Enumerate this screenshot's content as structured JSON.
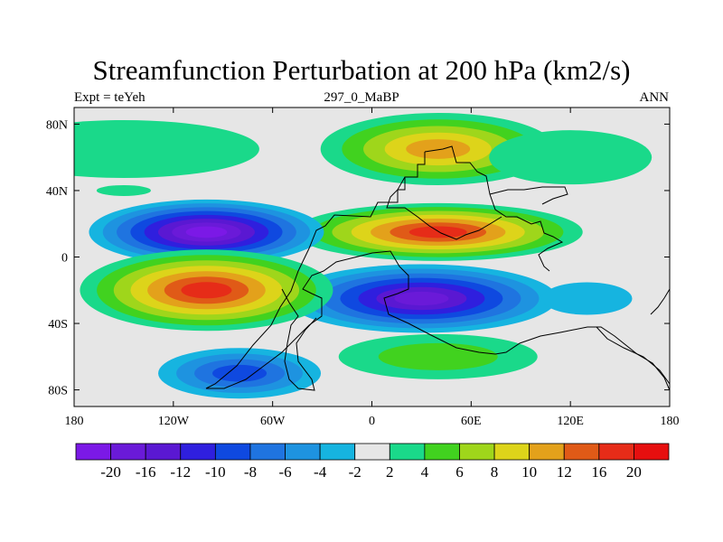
{
  "chart_data": {
    "type": "heatmap",
    "subtype": "filled-contour-map",
    "title": "Streamfunction Perturbation at 200 hPa (km2/s)",
    "subtitle_left": "Expt = teYeh",
    "subtitle_center": "297_0_MaBP",
    "subtitle_right": "ANN",
    "x_ticks": [
      "180",
      "120W",
      "60W",
      "0",
      "60E",
      "120E",
      "180"
    ],
    "x_tick_values": [
      -180,
      -120,
      -60,
      0,
      60,
      120,
      180
    ],
    "y_ticks": [
      "80N",
      "40N",
      "0",
      "40S",
      "80S"
    ],
    "y_tick_values": [
      80,
      40,
      0,
      -40,
      -80
    ],
    "xlim": [
      -180,
      180
    ],
    "ylim": [
      -90,
      90
    ],
    "colorbar_labels": [
      "-20",
      "-16",
      "-12",
      "-10",
      "-8",
      "-6",
      "-4",
      "-2",
      "2",
      "4",
      "6",
      "8",
      "10",
      "12",
      "16",
      "20"
    ],
    "colorbar_levels": [
      -20,
      -16,
      -12,
      -10,
      -8,
      -6,
      -4,
      -2,
      2,
      4,
      6,
      8,
      10,
      12,
      16,
      20
    ],
    "colorbar_colors": [
      "#7b19e6",
      "#6a1ad8",
      "#5a18d2",
      "#2f1fde",
      "#0f49e0",
      "#1f74e0",
      "#1e93e0",
      "#16b4e0",
      "#e6e6e6",
      "#1ad98a",
      "#41d21f",
      "#9fd61b",
      "#ddd41a",
      "#e3a11b",
      "#e05a17",
      "#e62c18",
      "#e60f0f"
    ],
    "blobs": [
      {
        "name": "north-pacific-positive",
        "lon": -150,
        "lat": 65,
        "value": 3.5
      },
      {
        "name": "arctic-asia-positive",
        "lon": 40,
        "lat": 65,
        "value": 11
      },
      {
        "name": "north-atlantic-positive",
        "lon": 120,
        "lat": 60,
        "value": 3
      },
      {
        "name": "tropical-asia-high",
        "lon": 40,
        "lat": 15,
        "value": 16
      },
      {
        "name": "north-america-low",
        "lon": -100,
        "lat": 15,
        "value": -20
      },
      {
        "name": "southern-africa-low",
        "lon": 30,
        "lat": -25,
        "value": -16
      },
      {
        "name": "south-pacific-high",
        "lon": -100,
        "lat": -20,
        "value": 17
      },
      {
        "name": "south-atlantic-high",
        "lon": 40,
        "lat": -60,
        "value": 5
      },
      {
        "name": "southern-ocean-low",
        "lon": -80,
        "lat": -70,
        "value": -8
      },
      {
        "name": "indian-ocean-low",
        "lon": 130,
        "lat": -25,
        "value": -3
      },
      {
        "name": "equatorial-east-pacific-high",
        "lon": -150,
        "lat": 40,
        "value": 3
      }
    ]
  }
}
